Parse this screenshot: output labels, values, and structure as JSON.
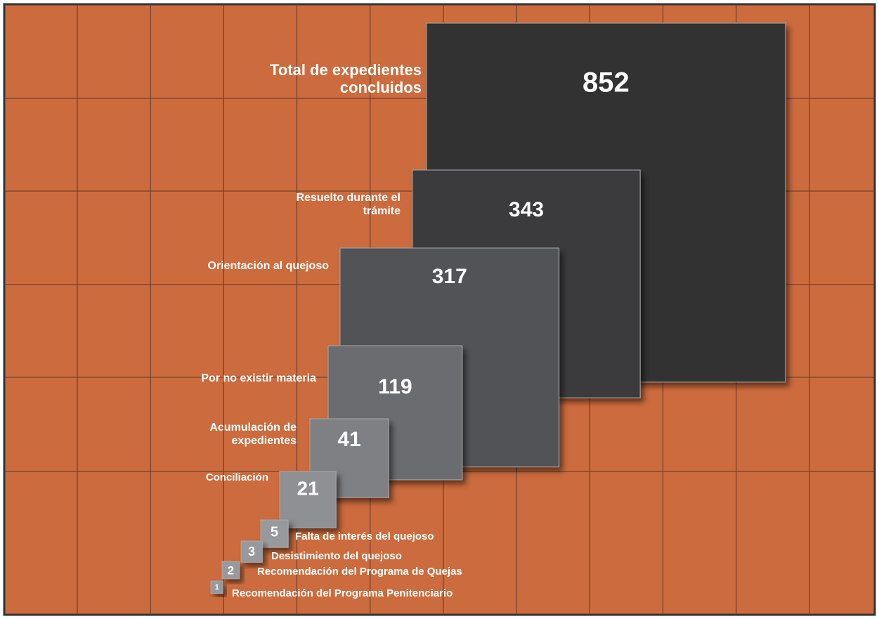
{
  "chart_data": {
    "type": "squares",
    "categories": [
      "Total de expedientes concluidos",
      "Resuelto durante el trámite",
      "Orientación al quejoso",
      "Por no existir materia",
      "Acumulación de expedientes",
      "Conciliación",
      "Falta de interés del quejoso",
      "Desistimiento del quejoso",
      "Recomendación del Programa de Quejas",
      "Recomendación del Programa Penitenciario"
    ],
    "values": [
      852,
      343,
      317,
      119,
      41,
      21,
      5,
      3,
      2,
      1
    ],
    "colors": [
      "#333333",
      "#3b3b3d",
      "#515356",
      "#6a6c6f",
      "#7e8083",
      "#8e9093",
      "#98999c",
      "#98999c",
      "#98999c",
      "#98999c"
    ]
  }
}
